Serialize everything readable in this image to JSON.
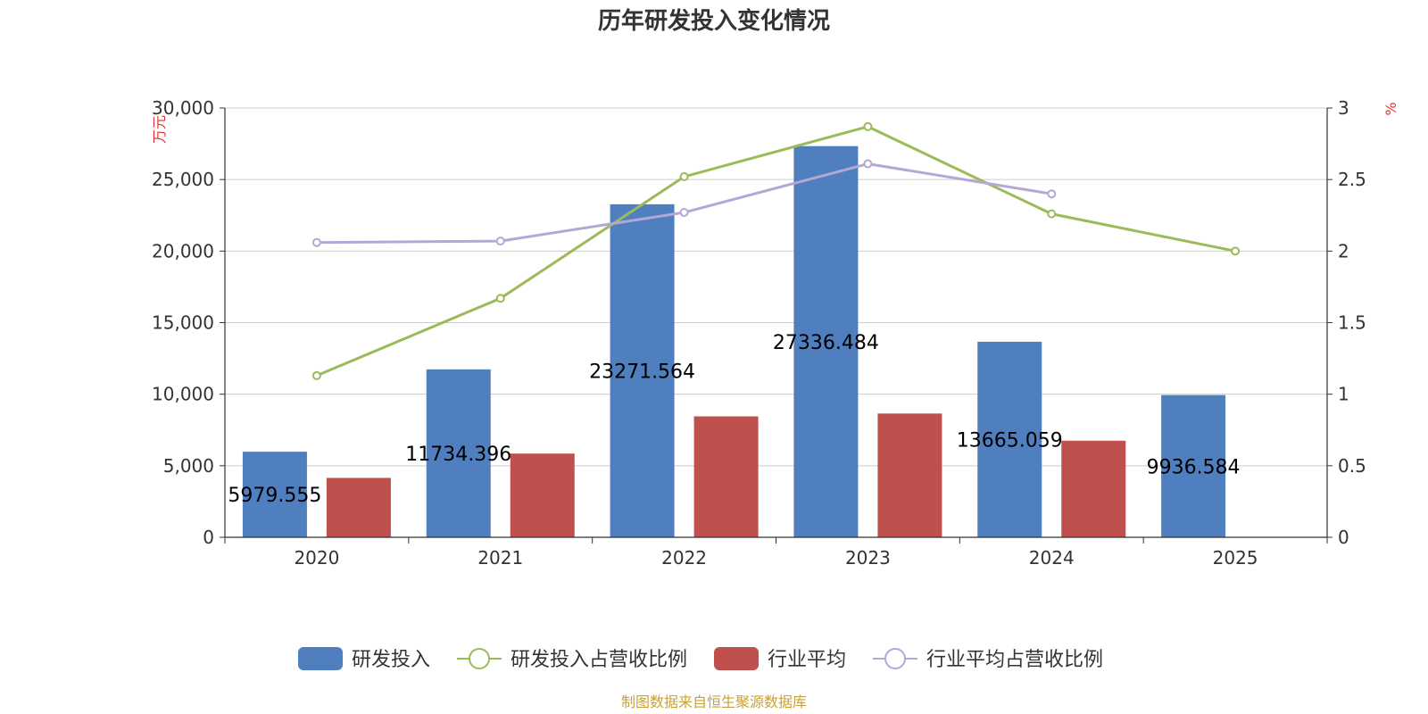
{
  "chart_data": {
    "type": "bar",
    "title": "历年研发投入变化情况",
    "categories": [
      "2020",
      "2021",
      "2022",
      "2023",
      "2024",
      "2025"
    ],
    "y_left": {
      "unit": "万元",
      "ylim": [
        0,
        30000
      ],
      "ticks": [
        "0",
        "5,000",
        "10,000",
        "15,000",
        "20,000",
        "25,000",
        "30,000"
      ]
    },
    "y_right": {
      "unit": "%",
      "ylim": [
        0,
        3
      ],
      "ticks": [
        "0",
        "0.5",
        "1",
        "1.5",
        "2",
        "2.5",
        "3"
      ]
    },
    "grid": true,
    "legend_position": "bottom",
    "series": [
      {
        "name": "研发投入",
        "kind": "bar",
        "axis": "left",
        "color": "#4f7fbf",
        "values": [
          5979.555,
          11734.396,
          23271.564,
          27336.484,
          13665.059,
          9936.584
        ],
        "labels": [
          "5979.555",
          "11734.396",
          "23271.564",
          "27336.484",
          "13665.059",
          "9936.584"
        ]
      },
      {
        "name": "研发投入占营收比例",
        "kind": "line",
        "axis": "right",
        "color": "#9bbb59",
        "values": [
          1.13,
          1.67,
          2.52,
          2.87,
          2.26,
          2.0
        ]
      },
      {
        "name": "行业平均",
        "kind": "bar",
        "axis": "left",
        "color": "#c0504d",
        "values": [
          4150,
          5850,
          8450,
          8650,
          6750,
          null
        ]
      },
      {
        "name": "行业平均占营收比例",
        "kind": "line",
        "axis": "right",
        "color": "#b4a7d6",
        "values": [
          2.06,
          2.07,
          2.27,
          2.61,
          2.4,
          null
        ]
      }
    ],
    "source": "制图数据来自恒生聚源数据库"
  }
}
